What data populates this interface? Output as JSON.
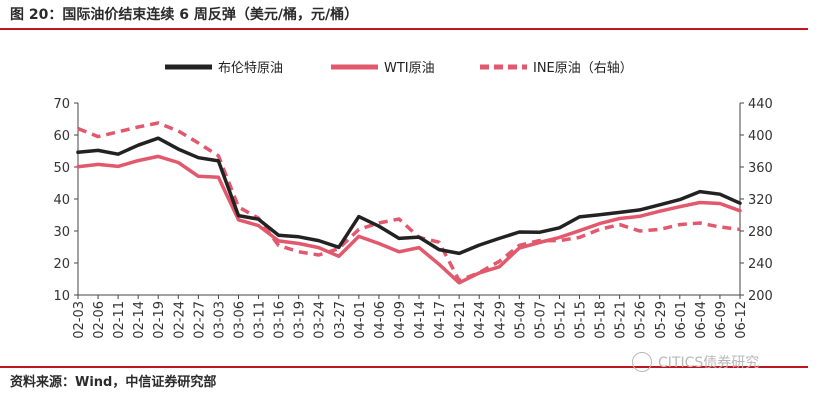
{
  "title": "图 20：国际油价结束连续 6 周反弹（美元/桶，元/桶）",
  "source": "资料来源：Wind，中信证券研究部",
  "watermark": "CITICS债券研究",
  "colors": {
    "brent": "#222222",
    "wti": "#e2586c",
    "ine": "#e2586c",
    "rule": "#c0161f"
  },
  "chart_data": {
    "type": "line",
    "x": [
      "02-03",
      "02-06",
      "02-11",
      "02-14",
      "02-19",
      "02-24",
      "02-27",
      "03-03",
      "03-06",
      "03-11",
      "03-16",
      "03-19",
      "03-24",
      "03-27",
      "04-01",
      "04-06",
      "04-09",
      "04-14",
      "04-17",
      "04-21",
      "04-24",
      "04-29",
      "05-04",
      "05-07",
      "05-12",
      "05-15",
      "05-18",
      "05-21",
      "05-26",
      "05-29",
      "06-01",
      "06-04",
      "06-09",
      "06-12"
    ],
    "ylim_left": [
      10,
      70
    ],
    "yticks_left": [
      10,
      20,
      30,
      40,
      50,
      60,
      70
    ],
    "ylim_right": [
      200,
      440
    ],
    "yticks_right": [
      200,
      240,
      280,
      320,
      360,
      400,
      440
    ],
    "series": [
      {
        "name": "布伦特原油",
        "axis": "left",
        "style": "solid",
        "values": [
          54.6,
          55.2,
          54.0,
          56.8,
          59.0,
          55.6,
          52.9,
          51.9,
          34.8,
          33.7,
          28.7,
          28.2,
          27.0,
          24.9,
          34.5,
          31.5,
          27.7,
          28.1,
          24.2,
          23.0,
          25.6,
          27.7,
          29.7,
          29.6,
          31.0,
          34.4,
          35.1,
          35.8,
          36.6,
          38.2,
          39.8,
          42.3,
          41.5,
          38.7
        ]
      },
      {
        "name": "WTI原油",
        "axis": "left",
        "style": "solid",
        "values": [
          50.1,
          50.8,
          50.2,
          52.0,
          53.3,
          51.4,
          47.1,
          46.8,
          33.5,
          31.7,
          26.9,
          26.1,
          24.8,
          22.1,
          28.3,
          26.1,
          23.5,
          24.8,
          19.6,
          13.8,
          16.9,
          18.8,
          24.7,
          26.4,
          28.0,
          30.1,
          32.3,
          33.9,
          34.6,
          36.2,
          37.6,
          38.9,
          38.6,
          36.3
        ]
      },
      {
        "name": "INE原油（右轴）",
        "axis": "right",
        "style": "dashed",
        "values": [
          408,
          398,
          404,
          410,
          415,
          405,
          390,
          374,
          310,
          296,
          262,
          254,
          250,
          258,
          282,
          290,
          295,
          272,
          266,
          218,
          228,
          242,
          262,
          268,
          268,
          272,
          282,
          288,
          280,
          282,
          288,
          290,
          285,
          282
        ]
      }
    ]
  }
}
